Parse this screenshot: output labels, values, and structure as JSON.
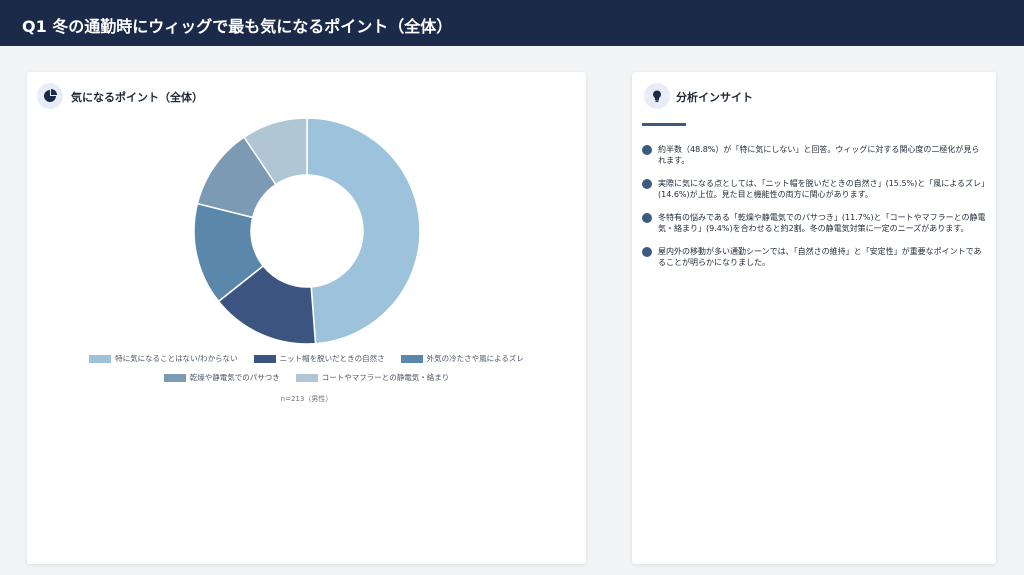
{
  "header": {
    "title": "Q1 冬の通勤時にウィッグで最も気になるポイント（全体）"
  },
  "chart_card": {
    "title": "気になるポイント（全体）",
    "icon": "pie-chart-icon",
    "sample_note": "n=213（男性）"
  },
  "chart_data": {
    "type": "pie",
    "title": "",
    "categories": [
      "特に気になることはない/わからない",
      "ニット帽を脱いだときの自然さ",
      "外気の冷たさや風によるズレ",
      "乾燥や静電気でのパサつき",
      "コートやマフラーとの静電気・絡まり"
    ],
    "values": [
      48.8,
      15.5,
      14.6,
      11.7,
      9.4
    ],
    "colors": [
      "#9dc3dc",
      "#3c5580",
      "#5b87aa",
      "#7c9ab4",
      "#b0c6d5"
    ],
    "legend_position": "bottom"
  },
  "insight_card": {
    "title": "分析インサイト",
    "icon": "lightbulb-icon",
    "items": [
      "約半数（48.8%）が「特に気にしない」と回答。ウィッグに対する関心度の二極化が見られます。",
      "実際に気になる点としては、「ニット帽を脱いだときの自然さ」(15.5%)と「風によるズレ」(14.6%)が上位。見た目と機能性の両方に関心があります。",
      "冬特有の悩みである「乾燥や静電気でのパサつき」(11.7%)と「コートやマフラーとの静電気・絡まり」(9.4%)を合わせると約2割。冬の静電気対策に一定のニーズがあります。",
      "屋内外の移動が多い通勤シーンでは、「自然さの維持」と「安定性」が重要なポイントであることが明らかになりました。"
    ]
  }
}
